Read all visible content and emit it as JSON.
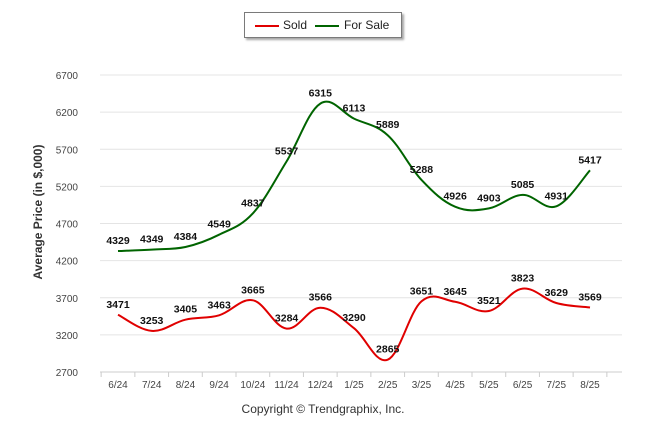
{
  "chart_data": {
    "type": "line",
    "categories": [
      "6/24",
      "7/24",
      "8/24",
      "9/24",
      "10/24",
      "11/24",
      "12/24",
      "1/25",
      "2/25",
      "3/25",
      "4/25",
      "5/25",
      "6/25",
      "7/25",
      "8/25"
    ],
    "series": [
      {
        "name": "Sold",
        "color": "#e00000",
        "values": [
          3471,
          3253,
          3405,
          3463,
          3665,
          3284,
          3566,
          3290,
          2865,
          3651,
          3645,
          3521,
          3823,
          3629,
          3569
        ]
      },
      {
        "name": "For Sale",
        "color": "#006400",
        "values": [
          4329,
          4349,
          4384,
          4549,
          4837,
          5537,
          6315,
          6113,
          5889,
          5288,
          4926,
          4903,
          5085,
          4931,
          5417
        ]
      }
    ],
    "yticks": [
      2700,
      3200,
      3700,
      4200,
      4700,
      5200,
      5700,
      6200,
      6700
    ],
    "ylim": [
      2700,
      6700
    ],
    "ylabel": "Average Price (in $,000)",
    "xlabel": "",
    "grid": true,
    "legend_position": "top-center"
  },
  "credit": "Copyright © Trendgraphix, Inc."
}
